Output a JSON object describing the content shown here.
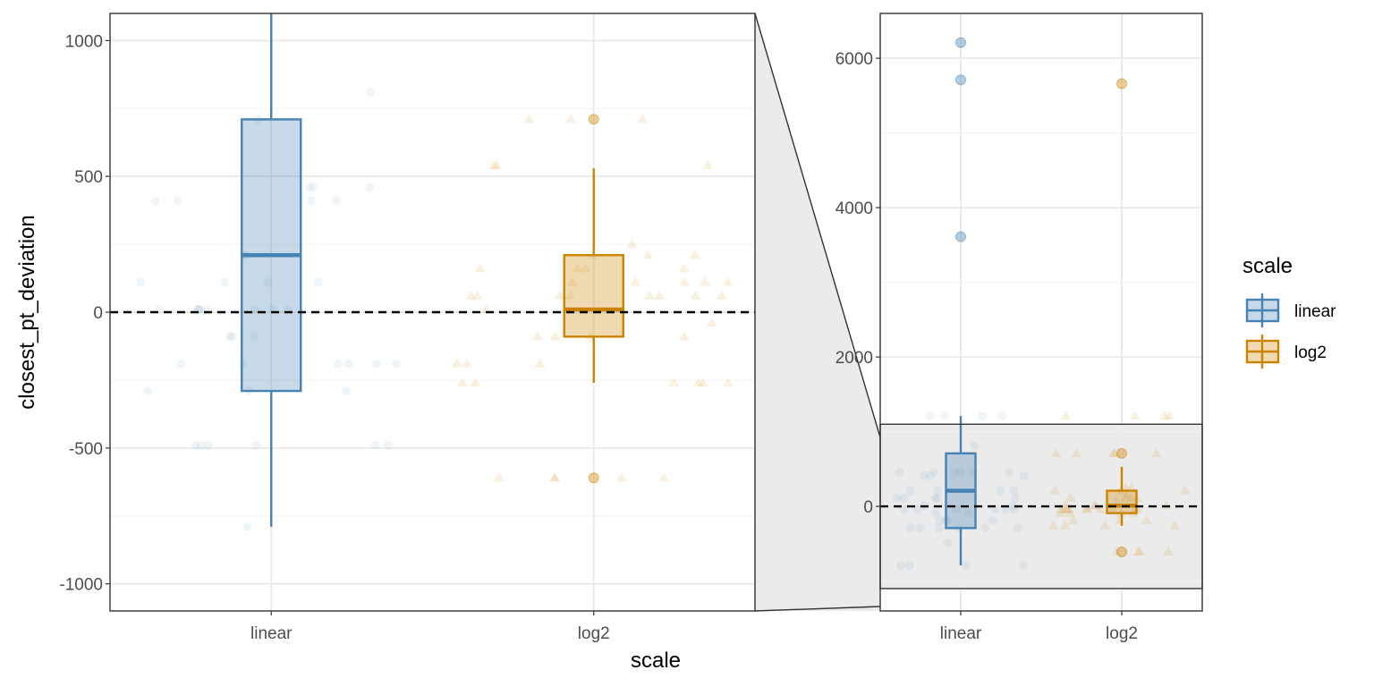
{
  "chart_data": {
    "type": "box",
    "xlabel": "scale",
    "ylabel": "closest_pt_deviation",
    "categories": [
      "linear",
      "log2"
    ],
    "colors": {
      "linear": "#4682b4",
      "log2": "#cc8400"
    },
    "legend": {
      "title": "scale",
      "position": "right",
      "entries": [
        "linear",
        "log2"
      ]
    },
    "reference_line": {
      "y": 0,
      "style": "dashed"
    },
    "grid": true,
    "main_panel": {
      "ylim": [
        -1100,
        1100
      ],
      "yticks": [
        1000,
        500,
        0,
        -500,
        -1000
      ]
    },
    "zoom_panel": {
      "ylim": [
        -1400,
        6600
      ],
      "yticks": [
        6000,
        4000,
        2000,
        0
      ],
      "highlight_range": [
        -1100,
        1100
      ]
    },
    "boxes": [
      {
        "category": "linear",
        "lower_whisker": -790,
        "q1": -290,
        "median": 210,
        "q3": 710,
        "upper_whisker": 1210,
        "outliers": [
          3610,
          5710,
          6210
        ]
      },
      {
        "category": "log2",
        "lower_whisker": -260,
        "q1": -90,
        "median": 10,
        "q3": 210,
        "upper_whisker": 530,
        "outliers": [
          710,
          -610,
          5660
        ]
      }
    ]
  }
}
